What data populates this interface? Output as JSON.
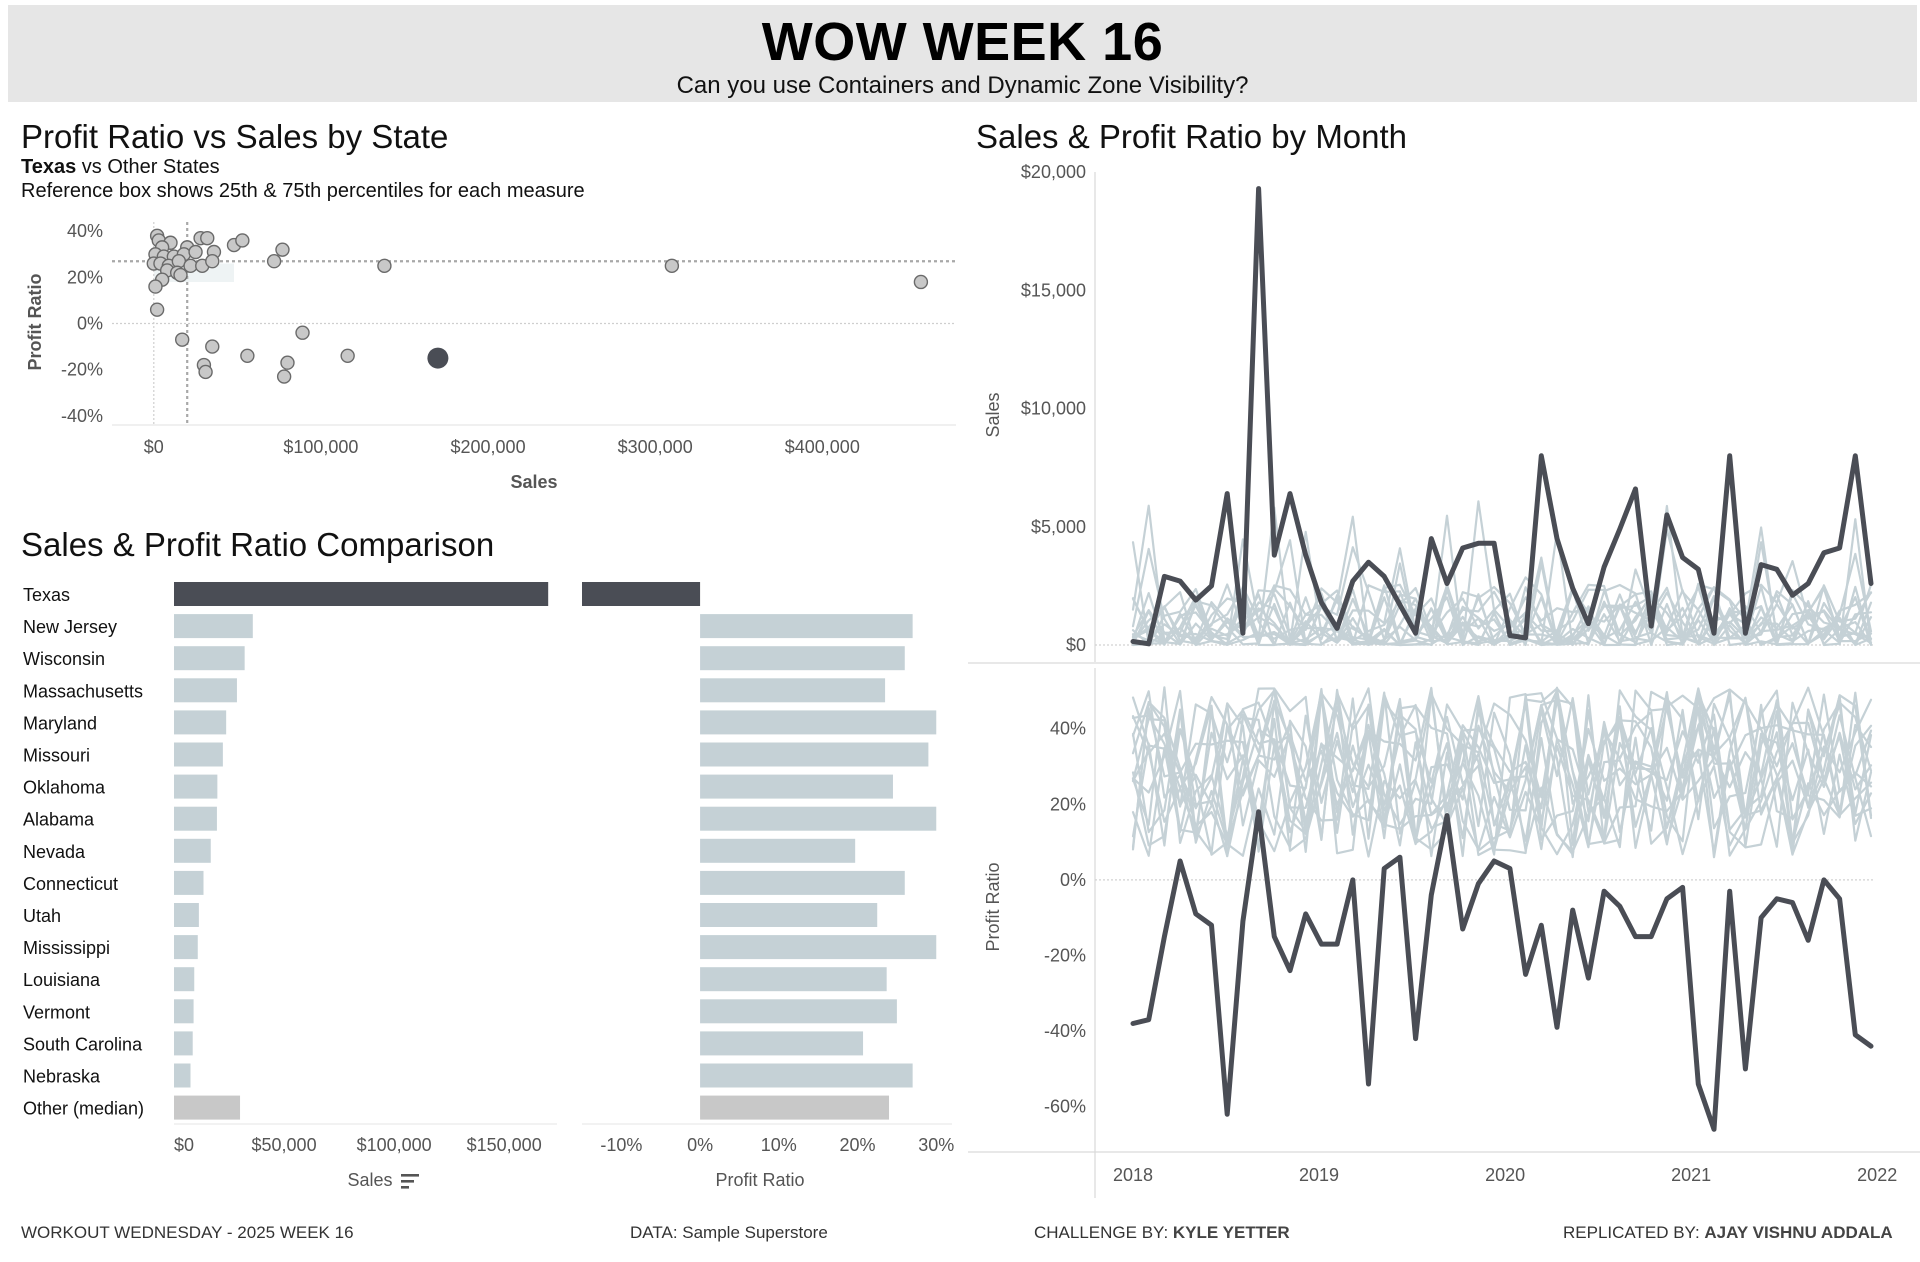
{
  "header": {
    "title": "WOW WEEK 16",
    "subtitle": "Can you use Containers and Dynamic Zone Visibility?"
  },
  "scatter_section": {
    "title": "Profit Ratio vs Sales by State",
    "subtitle_bold": "Texas",
    "subtitle_rest": " vs Other States",
    "note": "Reference box shows 25th & 75th percentiles for each measure"
  },
  "comparison_section": {
    "title": "Sales & Profit Ratio Comparison"
  },
  "monthly_section": {
    "title": "Sales & Profit Ratio by Month"
  },
  "footer": {
    "left": "WORKOUT WEDNESDAY - 2025 WEEK 16",
    "data": "DATA: Sample Superstore",
    "challenge_prefix": "CHALLENGE BY: ",
    "challenge_name": "KYLE YETTER",
    "replicated_prefix": "REPLICATED BY: ",
    "replicated_name": "AJAY VISHNU ADDALA"
  },
  "colors": {
    "highlight": "#4a4d55",
    "other": "#c5d1d6",
    "median": "#c8c8c8",
    "scatter_point": "#c8c8c8",
    "reference_box": "#eef3f4"
  },
  "chart_data": [
    {
      "id": "scatter",
      "type": "scatter",
      "xlabel": "Sales",
      "ylabel": "Profit Ratio",
      "x_ticks": [
        0,
        100000,
        200000,
        300000,
        400000
      ],
      "x_tick_labels": [
        "$0",
        "$100,000",
        "$200,000",
        "$300,000",
        "$400,000"
      ],
      "y_ticks": [
        0.4,
        0.2,
        0,
        -0.2,
        -0.4
      ],
      "y_tick_labels": [
        "40%",
        "20%",
        "0%",
        "-20%",
        "-40%"
      ],
      "xlim": [
        -25000,
        480000
      ],
      "ylim": [
        -0.44,
        0.44
      ],
      "reference_box": {
        "sales_p25": 0,
        "sales_p75": 48000,
        "ratio_p25": 0.18,
        "ratio_p75": 0.26
      },
      "reference_lines": {
        "sales_median": 20000,
        "ratio_median": 0.27
      },
      "highlight": {
        "name": "Texas",
        "x": 170000,
        "y": -0.15
      },
      "points": [
        [
          2000,
          0.38
        ],
        [
          3000,
          0.36
        ],
        [
          10000,
          0.35
        ],
        [
          5000,
          0.33
        ],
        [
          20000,
          0.33
        ],
        [
          28000,
          0.37
        ],
        [
          32000,
          0.37
        ],
        [
          48000,
          0.34
        ],
        [
          53000,
          0.36
        ],
        [
          77000,
          0.32
        ],
        [
          1000,
          0.3
        ],
        [
          6000,
          0.29
        ],
        [
          12000,
          0.29
        ],
        [
          18000,
          0.3
        ],
        [
          25000,
          0.31
        ],
        [
          36000,
          0.31
        ],
        [
          0,
          0.26
        ],
        [
          4000,
          0.26
        ],
        [
          9000,
          0.25
        ],
        [
          15000,
          0.27
        ],
        [
          22000,
          0.25
        ],
        [
          29000,
          0.25
        ],
        [
          35000,
          0.27
        ],
        [
          72000,
          0.27
        ],
        [
          8000,
          0.23
        ],
        [
          14000,
          0.22
        ],
        [
          5000,
          0.19
        ],
        [
          16000,
          0.21
        ],
        [
          1000,
          0.16
        ],
        [
          2000,
          0.06
        ],
        [
          138000,
          0.25
        ],
        [
          310000,
          0.25
        ],
        [
          459000,
          0.18
        ],
        [
          89000,
          -0.04
        ],
        [
          17000,
          -0.07
        ],
        [
          35000,
          -0.1
        ],
        [
          56000,
          -0.14
        ],
        [
          30000,
          -0.18
        ],
        [
          31000,
          -0.21
        ],
        [
          80000,
          -0.17
        ],
        [
          78000,
          -0.23
        ],
        [
          116000,
          -0.14
        ]
      ]
    },
    {
      "id": "comparison",
      "type": "bar",
      "categories": [
        "Texas",
        "New Jersey",
        "Wisconsin",
        "Massachusetts",
        "Maryland",
        "Missouri",
        "Oklahoma",
        "Alabama",
        "Nevada",
        "Connecticut",
        "Utah",
        "Mississippi",
        "Louisiana",
        "Vermont",
        "South Carolina",
        "Nebraska",
        "Other (median)"
      ],
      "sales": [
        170000,
        35800,
        32100,
        28600,
        23700,
        22200,
        19700,
        19500,
        16700,
        13400,
        11300,
        10800,
        9200,
        8900,
        8500,
        7500,
        30000
      ],
      "profit_ratio": [
        -0.15,
        0.27,
        0.26,
        0.235,
        0.3,
        0.29,
        0.245,
        0.3,
        0.197,
        0.26,
        0.225,
        0.3,
        0.237,
        0.25,
        0.207,
        0.27,
        0.24
      ],
      "sales_xlabel": "Sales",
      "sales_ticks": [
        0,
        50000,
        100000,
        150000
      ],
      "sales_tick_labels": [
        "$0",
        "$50,000",
        "$100,000",
        "$150,000"
      ],
      "sales_xlim": [
        0,
        174000
      ],
      "ratio_xlabel": "Profit Ratio",
      "ratio_ticks": [
        -0.1,
        0,
        0.1,
        0.2,
        0.3
      ],
      "ratio_tick_labels": [
        "-10%",
        "0%",
        "10%",
        "20%",
        "30%"
      ],
      "ratio_xlim": [
        -0.15,
        0.32
      ]
    },
    {
      "id": "monthly_sales",
      "type": "line",
      "ylabel": "Sales",
      "ylim": [
        0,
        20000
      ],
      "y_ticks": [
        0,
        5000,
        10000,
        15000,
        20000
      ],
      "y_tick_labels": [
        "$0",
        "$5,000",
        "$10,000",
        "$15,000",
        "$20,000"
      ],
      "x_tick_labels": [
        "2018",
        "2019",
        "2020",
        "2021",
        "2022"
      ],
      "months": 48,
      "highlight_values": [
        150,
        50,
        2900,
        2700,
        1900,
        2500,
        6400,
        500,
        19300,
        3800,
        6400,
        3800,
        1800,
        700,
        2700,
        3500,
        2900,
        1700,
        500,
        4500,
        2600,
        4100,
        4300,
        4300,
        400,
        300,
        8000,
        4500,
        2400,
        900,
        3300,
        4900,
        6600,
        800,
        5500,
        3700,
        3200,
        500,
        8000,
        500,
        3400,
        3200,
        2100,
        2600,
        3900,
        4100,
        8000,
        2600
      ]
    },
    {
      "id": "monthly_profit_ratio",
      "type": "line",
      "ylabel": "Profit Ratio",
      "ylim": [
        -0.72,
        0.55
      ],
      "y_ticks": [
        0.4,
        0.2,
        0,
        -0.2,
        -0.4,
        -0.6
      ],
      "y_tick_labels": [
        "40%",
        "20%",
        "0%",
        "-20%",
        "-40%",
        "-60%"
      ],
      "x_tick_labels": [
        "2018",
        "2019",
        "2020",
        "2021",
        "2022"
      ],
      "months": 48,
      "highlight_values": [
        -0.38,
        -0.37,
        -0.15,
        0.05,
        -0.09,
        -0.12,
        -0.62,
        -0.11,
        0.18,
        -0.15,
        -0.24,
        -0.09,
        -0.17,
        -0.17,
        0.0,
        -0.54,
        0.03,
        0.06,
        -0.42,
        -0.04,
        0.17,
        -0.13,
        -0.01,
        0.05,
        0.03,
        -0.25,
        -0.12,
        -0.39,
        -0.08,
        -0.26,
        -0.03,
        -0.07,
        -0.15,
        -0.15,
        -0.05,
        -0.02,
        -0.54,
        -0.66,
        -0.03,
        -0.5,
        -0.1,
        -0.05,
        -0.06,
        -0.16,
        0.0,
        -0.05,
        -0.41,
        -0.44
      ]
    }
  ]
}
